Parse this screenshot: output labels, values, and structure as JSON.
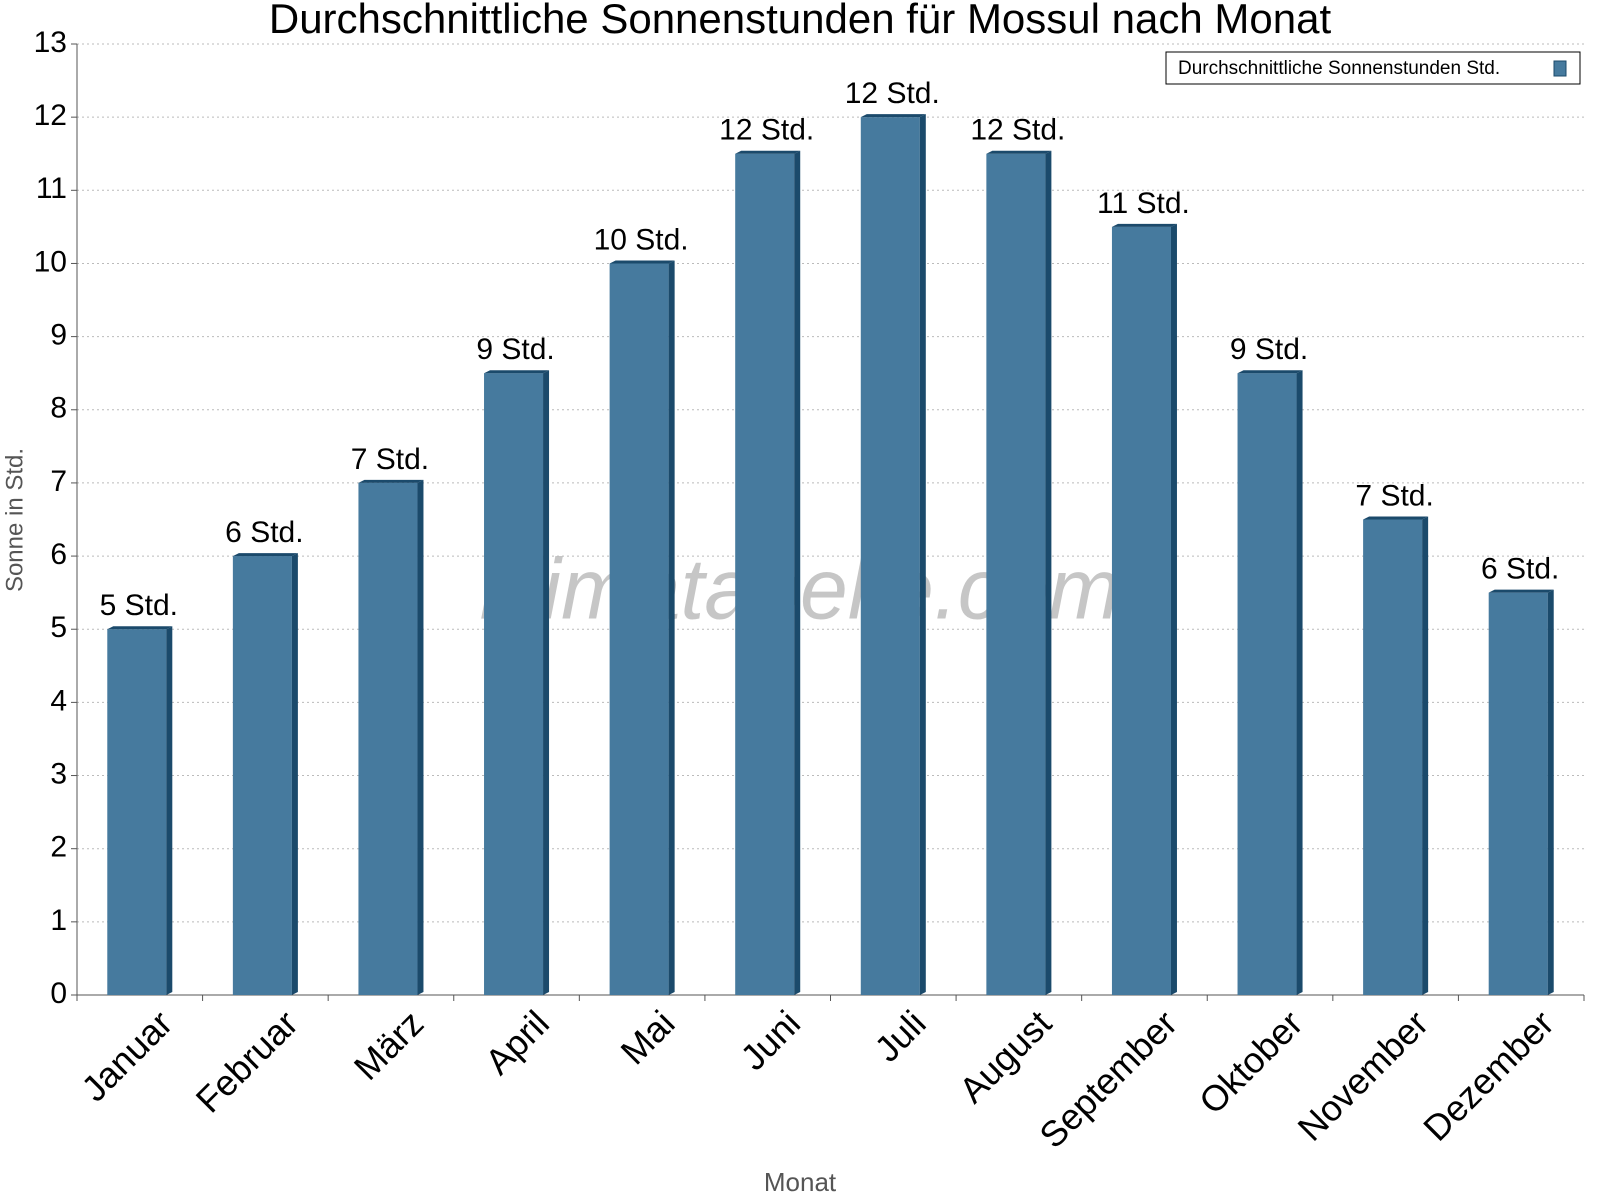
{
  "chart_data": {
    "type": "bar",
    "title": "Durchschnittliche Sonnenstunden für Mossul nach Monat",
    "x_label": "Monat",
    "y_label": "Sonne in Std.",
    "watermark": "klimatabelle.com",
    "categories": [
      "Januar",
      "Februar",
      "März",
      "April",
      "Mai",
      "Juni",
      "Juli",
      "August",
      "September",
      "Oktober",
      "November",
      "Dezember"
    ],
    "series": [
      {
        "name": "Durchschnittliche Sonnenstunden Std.",
        "color": "#467a9e",
        "values": [
          5,
          6,
          7,
          8.5,
          10,
          11.5,
          12,
          11.5,
          10.5,
          8.5,
          6.5,
          5.5
        ],
        "value_labels": [
          "5 Std.",
          "6 Std.",
          "7 Std.",
          "9 Std.",
          "10 Std.",
          "12 Std.",
          "12 Std.",
          "12 Std.",
          "11 Std.",
          "9 Std.",
          "7 Std.",
          "6 Std."
        ]
      }
    ],
    "ylim": [
      0,
      13
    ],
    "yticks": [
      0,
      1,
      2,
      3,
      4,
      5,
      6,
      7,
      8,
      9,
      10,
      11,
      12,
      13
    ],
    "grid": true,
    "legend": "top-right"
  }
}
